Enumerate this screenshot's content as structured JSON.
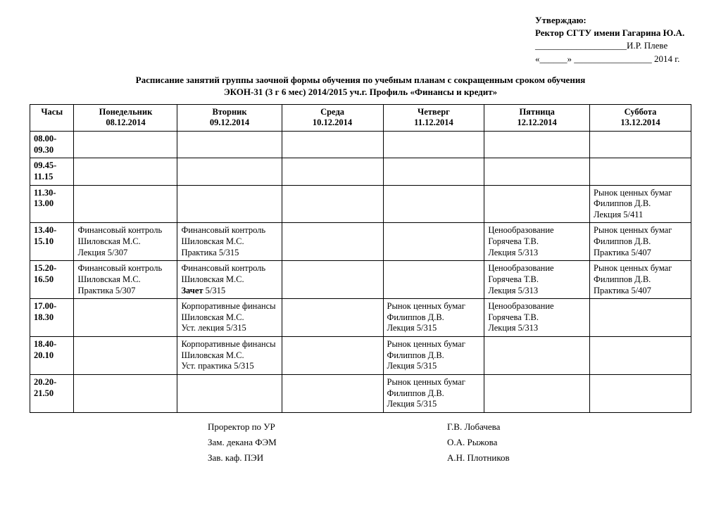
{
  "approval": {
    "line1": "Утверждаю:",
    "line2": "Ректор СГТУ имени Гагарина Ю.А.",
    "line3": "____________________И.Р. Плеве",
    "line4": "«______» _________________ 2014 г."
  },
  "title": {
    "line1": "Расписание занятий группы заочной формы обучения по учебным планам с сокращенным сроком обучения",
    "line2": "ЭКОН-31   (3 г 6 мес)  2014/2015 уч.г. Профиль «Финансы и кредит»"
  },
  "headers": {
    "hours": "Часы",
    "days": [
      {
        "name": "Понедельник",
        "date": "08.12.2014"
      },
      {
        "name": "Вторник",
        "date": "09.12.2014"
      },
      {
        "name": "Среда",
        "date": "10.12.2014"
      },
      {
        "name": "Четверг",
        "date": "11.12.2014"
      },
      {
        "name": "Пятница",
        "date": "12.12.2014"
      },
      {
        "name": "Суббота",
        "date": "13.12.2014"
      }
    ]
  },
  "rows": [
    {
      "time": "08.00-09.30",
      "cells": [
        "",
        "",
        "",
        "",
        "",
        ""
      ]
    },
    {
      "time": "09.45-11.15",
      "cells": [
        "",
        "",
        "",
        "",
        "",
        ""
      ]
    },
    {
      "time": "11.30-13.00",
      "cells": [
        "",
        "",
        "",
        "",
        "",
        "Рынок ценных бумаг\nФилиппов Д.В.\nЛекция 5/411"
      ]
    },
    {
      "time": "13.40-15.10",
      "cells": [
        "Финансовый контроль\nШиловская М.С.\nЛекция 5/307",
        "Финансовый контроль\nШиловская М.С.\nПрактика 5/315",
        "",
        "",
        "Ценообразование\nГорячева Т.В.\nЛекция 5/313",
        "Рынок ценных бумаг\nФилиппов Д.В.\nПрактика 5/407"
      ]
    },
    {
      "time": "15.20-16.50",
      "cells": [
        "Финансовый контроль\nШиловская М.С.\nПрактика 5/307",
        "Финансовый контроль\nШиловская М.С.\nЗачет  5/315",
        "",
        "",
        "Ценообразование\nГорячева Т.В.\nЛекция 5/313",
        "Рынок ценных бумаг\nФилиппов Д.В.\nПрактика 5/407"
      ]
    },
    {
      "time": "17.00-18.30",
      "cells": [
        "",
        "Корпоративные финансы\nШиловская М.С.\nУст. лекция  5/315",
        "",
        "Рынок ценных бумаг\nФилиппов Д.В.\nЛекция 5/315",
        "Ценообразование\nГорячева Т.В.\nЛекция 5/313",
        ""
      ]
    },
    {
      "time": "18.40-20.10",
      "cells": [
        "",
        "Корпоративные финансы\nШиловская М.С.\nУст. практика  5/315",
        "",
        "Рынок ценных бумаг\nФилиппов Д.В.\nЛекция 5/315",
        "",
        ""
      ]
    },
    {
      "time": "20.20-21.50",
      "cells": [
        "",
        "",
        "",
        "Рынок ценных бумаг\nФилиппов Д.В.\nЛекция 5/315",
        "",
        ""
      ]
    }
  ],
  "signatures": [
    {
      "role": "Проректор по УР",
      "name": "Г.В. Лобачева"
    },
    {
      "role": "Зам. декана ФЭМ",
      "name": "О.А. Рыжова"
    },
    {
      "role": "Зав. каф. ПЭИ",
      "name": "А.Н. Плотников"
    }
  ]
}
